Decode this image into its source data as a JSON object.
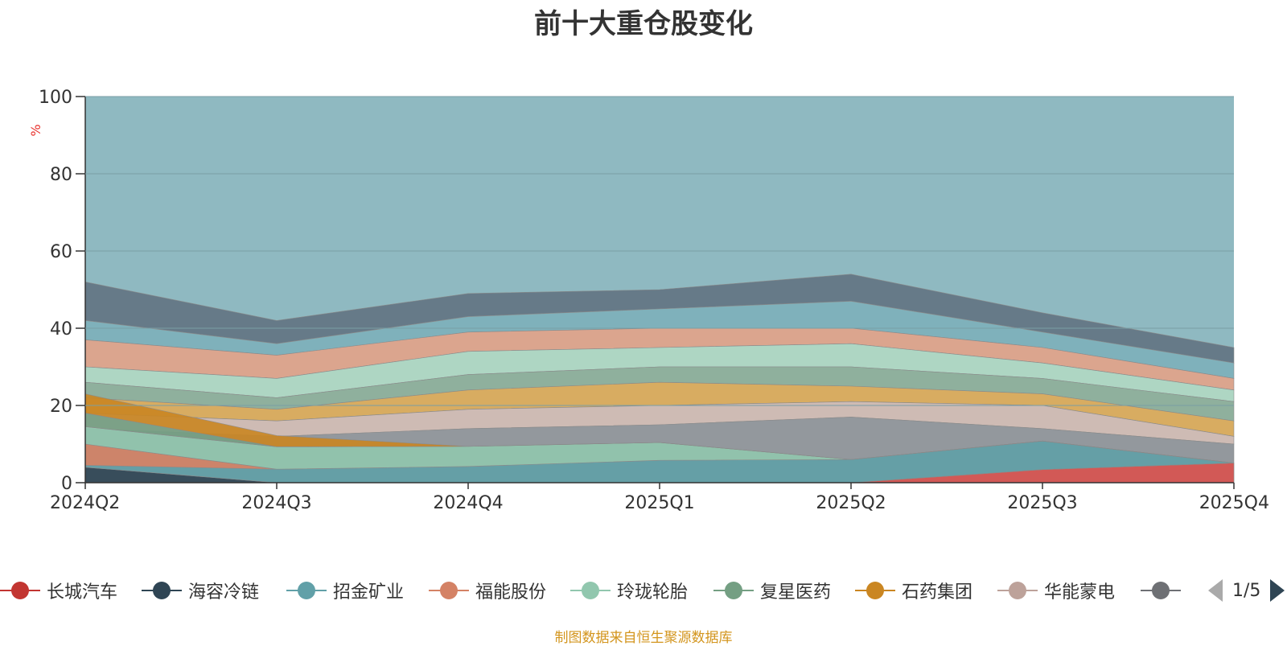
{
  "chart_data": {
    "type": "area",
    "stacked": true,
    "title": "前十大重仓股变化",
    "ylabel": "%",
    "xlabel": "",
    "ylim": [
      0,
      100
    ],
    "yticks": [
      0,
      20,
      40,
      60,
      80,
      100
    ],
    "categories": [
      "2024Q2",
      "2024Q3",
      "2024Q4",
      "2025Q1",
      "2025Q2",
      "2025Q3",
      "2025Q4"
    ],
    "series": [
      {
        "name": "长城汽车",
        "color": "#d9534f",
        "values": [
          0,
          0,
          0,
          0,
          0,
          3.4,
          5.1
        ]
      },
      {
        "name": "海容冷链",
        "color": "#2f4554",
        "values": [
          4.0,
          0,
          0,
          0,
          0,
          0,
          0
        ]
      },
      {
        "name": "招金矿业",
        "color": "#61a0a8",
        "values": [
          0.5,
          3.5,
          4.2,
          5.8,
          6.0,
          7.4,
          0
        ]
      },
      {
        "name": "福能股份",
        "color": "#d48265",
        "values": [
          5.5,
          0,
          0,
          0,
          0,
          0,
          0
        ]
      },
      {
        "name": "玲珑轮胎",
        "color": "#91c7ae",
        "values": [
          4.5,
          5.8,
          5.2,
          4.6,
          0,
          0,
          0
        ]
      },
      {
        "name": "复星医药",
        "color": "#749f83",
        "values": [
          3.5,
          0,
          0,
          0,
          0,
          0,
          0
        ]
      },
      {
        "name": "石药集团",
        "color": "#ca8622",
        "values": [
          5.0,
          2.9,
          0,
          0,
          0,
          0,
          0
        ]
      }
    ],
    "legend": {
      "position": "bottom",
      "page": "1/5",
      "entries": [
        {
          "name": "长城汽车",
          "color": "#c23531"
        },
        {
          "name": "海容冷链",
          "color": "#2f4554"
        },
        {
          "name": "招金矿业",
          "color": "#61a0a8"
        },
        {
          "name": "福能股份",
          "color": "#d48265"
        },
        {
          "name": "玲珑轮胎",
          "color": "#91c7ae"
        },
        {
          "name": "复星医药",
          "color": "#749f83"
        },
        {
          "name": "石药集团",
          "color": "#ca8622"
        },
        {
          "name": "华能蒙电",
          "color": "#bda29a"
        },
        {
          "name": "",
          "color": "#6e7074"
        }
      ]
    },
    "colors": {
      "background_fill": "#8fb9c1",
      "band_colors": [
        "#d9534f",
        "#647785",
        "#7fb1bb",
        "#e0a48c",
        "#b0d8c4",
        "#90b09c",
        "#dcac5c",
        "#d2bcb4",
        "#94979c",
        "#d5dce4"
      ]
    }
  },
  "footer": {
    "source": "制图数据来自恒生聚源数据库"
  }
}
